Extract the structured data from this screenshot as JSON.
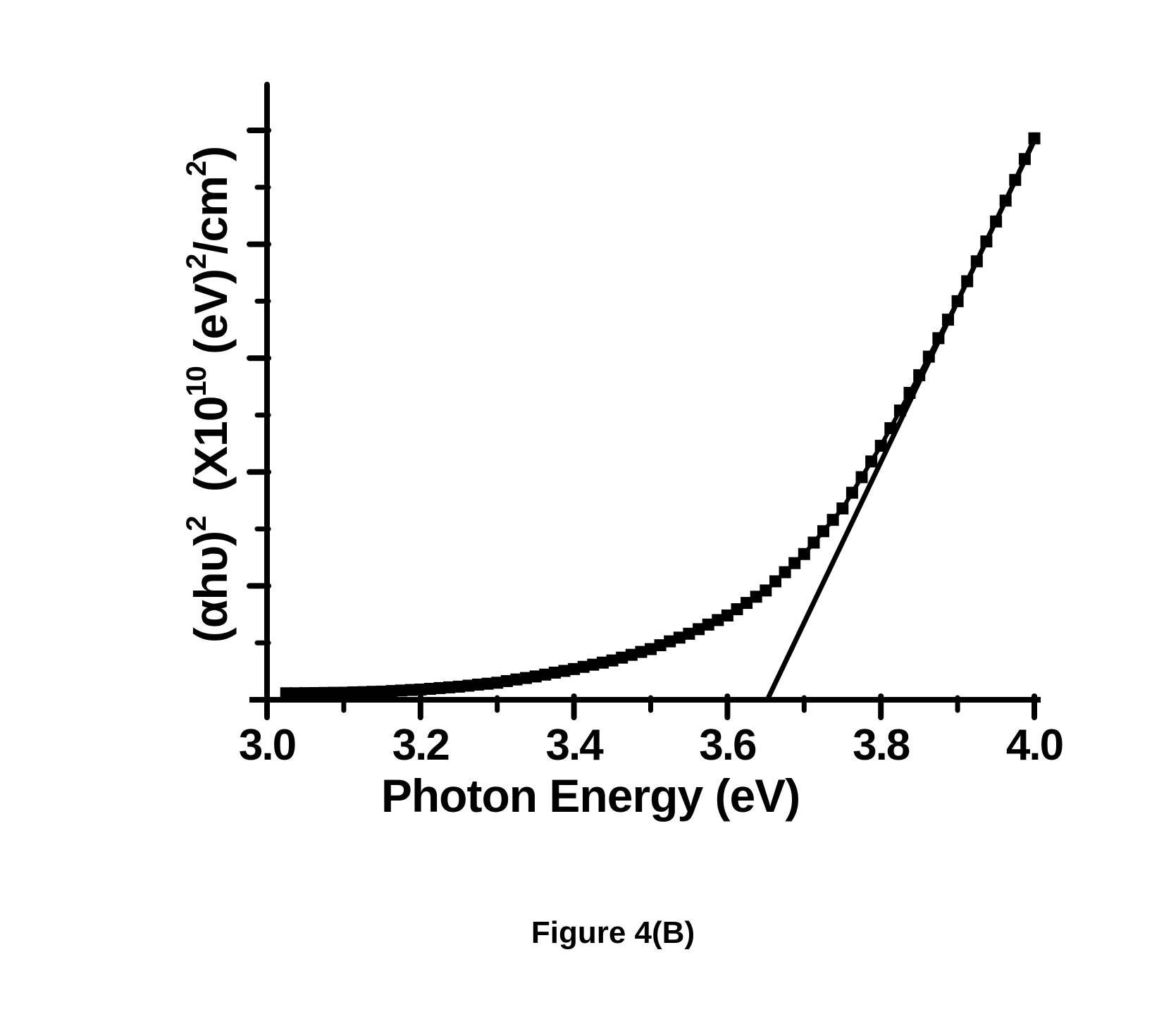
{
  "figure": {
    "caption": "Figure 4(B)"
  },
  "colors": {
    "ink": "#000000",
    "background": "#ffffff"
  },
  "chart_data": {
    "type": "scatter",
    "title": "",
    "xlabel": "Photon Energy (eV)",
    "ylabel": "(αhυ)²  (X10¹⁰ (eV)²/cm²)",
    "ylabel_parts": [
      {
        "t": "(αhυ)",
        "sup": "2"
      },
      {
        "t": "  (X10",
        "sup": "10"
      },
      {
        "t": " (eV)",
        "sup": "2"
      },
      {
        "t": "/cm",
        "sup": "2"
      },
      {
        "t": ")"
      }
    ],
    "xlim": [
      3.0,
      4.0
    ],
    "ylim": [
      0,
      5.4
    ],
    "grid": false,
    "legend": "none",
    "x_major_ticks": [
      3.0,
      3.2,
      3.4,
      3.6,
      3.8,
      4.0
    ],
    "x_minor_ticks": [
      3.1,
      3.3,
      3.5,
      3.7,
      3.9
    ],
    "x_tick_labels": [
      "3.0",
      "3.2",
      "3.4",
      "3.6",
      "3.8",
      "4.0"
    ],
    "y_major_ticks": [
      1,
      2,
      3,
      4,
      5
    ],
    "y_minor_ticks": [
      0.5,
      1.5,
      2.5,
      3.5,
      4.5
    ],
    "y_tick_labels": [],
    "series": [
      {
        "name": "(αhυ)² absorption data",
        "marker": "filled-square",
        "x": [
          3.025,
          3.0375,
          3.05,
          3.0625,
          3.075,
          3.0875,
          3.1,
          3.1125,
          3.125,
          3.1375,
          3.15,
          3.1625,
          3.175,
          3.1875,
          3.2,
          3.2125,
          3.225,
          3.2375,
          3.25,
          3.2625,
          3.275,
          3.2875,
          3.3,
          3.3125,
          3.325,
          3.3375,
          3.35,
          3.3625,
          3.375,
          3.3875,
          3.4,
          3.4125,
          3.425,
          3.4375,
          3.45,
          3.4625,
          3.475,
          3.4875,
          3.5,
          3.5125,
          3.525,
          3.5375,
          3.55,
          3.5625,
          3.575,
          3.5875,
          3.6,
          3.6125,
          3.625,
          3.6375,
          3.65,
          3.6625,
          3.675,
          3.6875,
          3.7,
          3.7125,
          3.725,
          3.7375,
          3.75,
          3.7625,
          3.775,
          3.7875,
          3.8,
          3.8125,
          3.825,
          3.8375,
          3.85,
          3.8625,
          3.875,
          3.8875,
          3.9,
          3.9125,
          3.925,
          3.9375,
          3.95,
          3.9625,
          3.975,
          3.9875,
          4.0
        ],
        "y": [
          0.057,
          0.057,
          0.058,
          0.059,
          0.06,
          0.061,
          0.062,
          0.065,
          0.067,
          0.07,
          0.072,
          0.077,
          0.081,
          0.086,
          0.09,
          0.096,
          0.103,
          0.109,
          0.115,
          0.124,
          0.133,
          0.141,
          0.15,
          0.164,
          0.178,
          0.191,
          0.205,
          0.221,
          0.238,
          0.254,
          0.27,
          0.289,
          0.308,
          0.326,
          0.345,
          0.37,
          0.395,
          0.42,
          0.445,
          0.479,
          0.513,
          0.546,
          0.58,
          0.62,
          0.66,
          0.7,
          0.74,
          0.795,
          0.85,
          0.905,
          0.96,
          1.04,
          1.12,
          1.2,
          1.28,
          1.38,
          1.48,
          1.58,
          1.68,
          1.818,
          1.955,
          2.093,
          2.23,
          2.385,
          2.54,
          2.695,
          2.85,
          3.013,
          3.175,
          3.338,
          3.5,
          3.675,
          3.85,
          4.025,
          4.2,
          4.383,
          4.565,
          4.748,
          4.93
        ]
      }
    ],
    "tangent_line": {
      "x_intercept": 3.652,
      "x_end": 4.0,
      "y_end": 4.91,
      "band_gap_eV": 3.65
    }
  }
}
